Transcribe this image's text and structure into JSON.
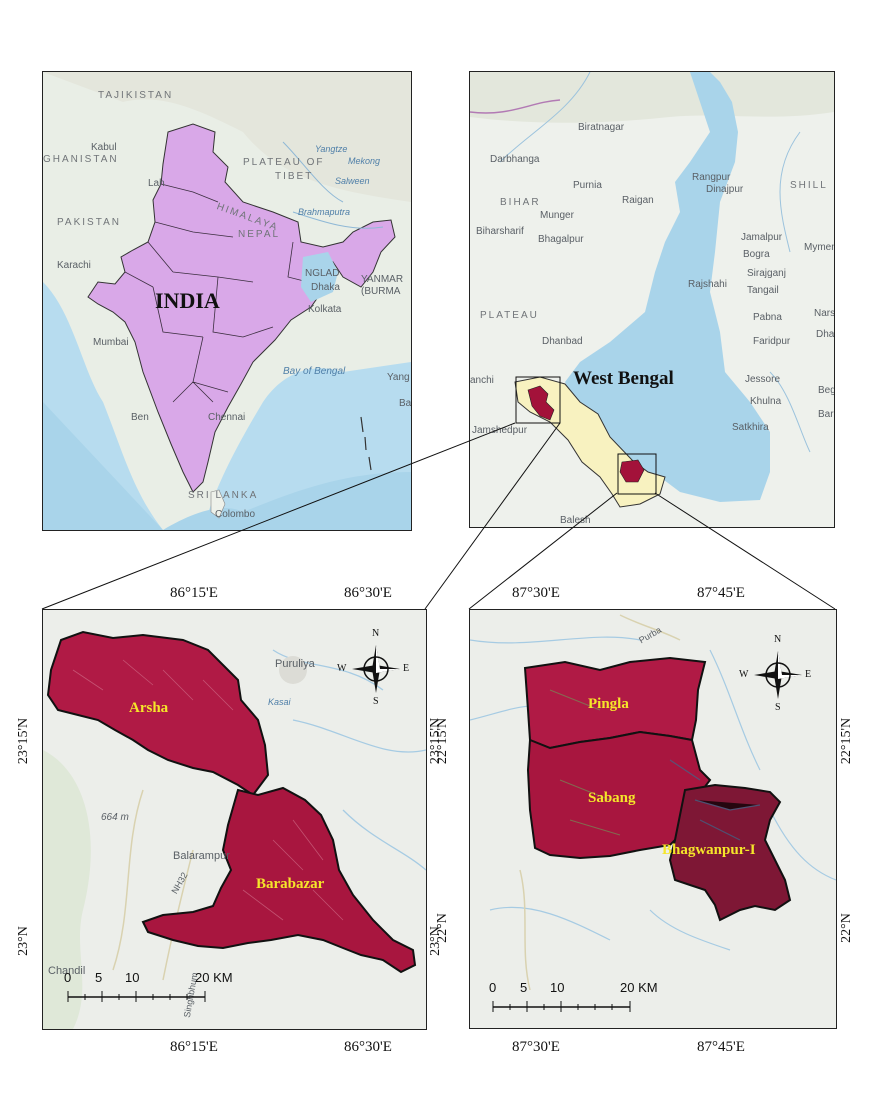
{
  "india_map": {
    "country_label": "INDIA",
    "places": [
      "TAJIKISTAN",
      "Kabul",
      "GHANISTAN",
      "PAKISTAN",
      "Karachi",
      "Mumbai",
      "Lah",
      "NEPAL",
      "PLATEAU OF",
      "TIBET",
      "Yangtze",
      "Mekong",
      "Salween",
      "Brahmaputra",
      "HIMALAYA",
      "NGLAD",
      "Dhaka",
      "Kolkata",
      "YANMAR",
      "(BURMA",
      "Bay of Bengal",
      "Ben",
      "Chennai",
      "SRI LANKA",
      "Colombo",
      "Yang",
      "Ba"
    ]
  },
  "wb_map": {
    "state_label": "West Bengal",
    "places": [
      "Biratnagar",
      "Darbhanga",
      "Purnia",
      "Raigan",
      "Rangpur",
      "Dinajpur",
      "BIHAR",
      "Munger",
      "Bhagalpur",
      "Biharsharif",
      "Jamalpur",
      "Bogra",
      "Mymen",
      "Sirajganj",
      "Tangail",
      "Rajshahi",
      "PLATEAU",
      "Dhanbad",
      "Pabna",
      "Faridpur",
      "Narsi",
      "Dha",
      "anchi",
      "Jessore",
      "Khulna",
      "Satkhira",
      "Beg",
      "Bar",
      "Jamshedpur",
      "Balesh",
      "SHILL"
    ]
  },
  "purulia_map": {
    "top_ticks": [
      "86°15'E",
      "86°30'E"
    ],
    "bottom_ticks": [
      "86°15'E",
      "86°30'E"
    ],
    "left_ticks": [
      "23°15'N",
      "23°N"
    ],
    "right_ticks": [
      "23°15'N",
      "23°N"
    ],
    "blocks": [
      "Arsha",
      "Barabazar"
    ],
    "places": [
      "Puruliya",
      "Kasai",
      "664 m",
      "Balarampur",
      "NH32",
      "Chandil",
      "Singhbhum"
    ],
    "scale": {
      "labels": [
        "0",
        "5",
        "10",
        "20 KM"
      ]
    },
    "compass": {
      "n": "N",
      "s": "S",
      "e": "E",
      "w": "W"
    }
  },
  "medinipur_map": {
    "top_ticks": [
      "87°30'E",
      "87°45'E"
    ],
    "bottom_ticks": [
      "87°30'E",
      "87°45'E"
    ],
    "left_ticks": [
      "22°15'N",
      "22°N"
    ],
    "right_ticks": [
      "22°15'N",
      "22°N"
    ],
    "blocks": [
      "Pingla",
      "Sabang",
      "Bhagwanpur-I"
    ],
    "places": [
      "Purba"
    ],
    "scale": {
      "labels": [
        "0",
        "5",
        "10",
        "20 KM"
      ]
    },
    "compass": {
      "n": "N",
      "s": "S",
      "e": "E",
      "w": "W"
    }
  },
  "colors": {
    "india_fill": "#d9a8e8",
    "wb_fill": "#f8f2c0",
    "water": "#a9d4ea",
    "block_fill": "#a3123a",
    "imagery_red": "#b01a45",
    "label_yellow": "#f5e62a"
  }
}
